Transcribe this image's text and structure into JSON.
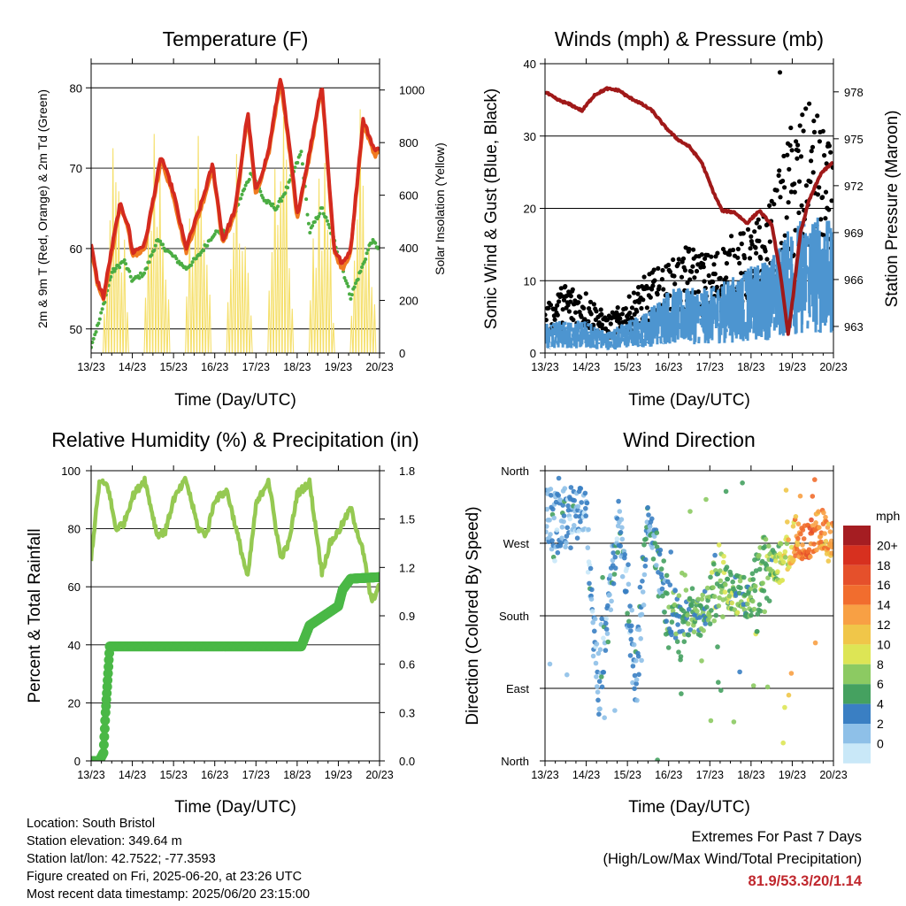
{
  "panels": {
    "temperature": {
      "title": "Temperature (F)",
      "ylabel_left": "2m & 9m T (Red, Orange) & 2m Td (Green)",
      "ylabel_right": "Solar Insolation (Yellow)",
      "xlabel": "Time (Day/UTC)",
      "x_ticks": [
        "13/23",
        "14/23",
        "15/23",
        "16/23",
        "17/23",
        "18/23",
        "19/23",
        "20/23"
      ],
      "y_ticks_left": [
        "50",
        "60",
        "70",
        "80"
      ],
      "y_ticks_right": [
        "0",
        "200",
        "400",
        "600",
        "800",
        "1000"
      ]
    },
    "winds": {
      "title": "Winds (mph) & Pressure (mb)",
      "ylabel_left": "Sonic Wind & Gust (Blue, Black)",
      "ylabel_right": "Station Pressure (Maroon)",
      "xlabel": "Time (Day/UTC)",
      "x_ticks": [
        "13/23",
        "14/23",
        "15/23",
        "16/23",
        "17/23",
        "18/23",
        "19/23",
        "20/23"
      ],
      "y_ticks_left": [
        "0",
        "10",
        "20",
        "30",
        "40"
      ],
      "y_ticks_right": [
        "963",
        "966",
        "969",
        "972",
        "975",
        "978"
      ]
    },
    "humidity": {
      "title": "Relative Humidity (%) & Precipitation (in)",
      "ylabel_left": "Percent & Total Rainfall",
      "xlabel": "Time (Day/UTC)",
      "x_ticks": [
        "13/23",
        "14/23",
        "15/23",
        "16/23",
        "17/23",
        "18/23",
        "19/23",
        "20/23"
      ],
      "y_ticks_left": [
        "0",
        "20",
        "40",
        "60",
        "80",
        "100"
      ],
      "y_ticks_right": [
        "0.0",
        "0.3",
        "0.6",
        "0.9",
        "1.2",
        "1.5",
        "1.8"
      ]
    },
    "direction": {
      "title": "Wind Direction",
      "ylabel_left": "Direction (Colored By Speed)",
      "xlabel": "Time (Day/UTC)",
      "x_ticks": [
        "13/23",
        "14/23",
        "15/23",
        "16/23",
        "17/23",
        "18/23",
        "19/23",
        "20/23"
      ],
      "y_ticks_left": [
        "North",
        "East",
        "South",
        "West",
        "North"
      ],
      "legend_title": "mph",
      "legend_labels": [
        "20+",
        "18",
        "16",
        "14",
        "12",
        "10",
        "8",
        "6",
        "4",
        "2",
        "0"
      ],
      "legend_colors": [
        "#a51d22",
        "#d7301f",
        "#e5502b",
        "#f16d2e",
        "#f8a044",
        "#f0c649",
        "#dde555",
        "#8cca62",
        "#45a160",
        "#3a7fc3",
        "#8ec0e8",
        "#c9e8f8"
      ]
    }
  },
  "info": {
    "location": "Location: South Bristol",
    "elevation": "Station elevation: 349.64 m",
    "latlon": "Station lat/lon: 42.7522; -77.3593",
    "created": "Figure created on Fri, 2025-06-20, at 23:26 UTC",
    "recent": "Most recent data timestamp: 2025/06/20 23:15:00"
  },
  "extremes": {
    "title": "Extremes For Past 7 Days",
    "subtitle": "(High/Low/Max Wind/Total Precipitation)",
    "values": "81.9/53.3/20/1.14"
  },
  "colors": {
    "temp_2m": "#d42a1f",
    "temp_9m": "#f07b20",
    "dewpoint": "#4bad43",
    "solar": "#f5df6a",
    "wind": "#4d95d0",
    "gust": "#000000",
    "pressure": "#a01919",
    "rh": "#95c952",
    "precip": "#4ab846"
  },
  "chart_data": [
    {
      "type": "line",
      "title": "Temperature (F)",
      "x": [
        "13/23",
        "14/23",
        "15/23",
        "16/23",
        "17/23",
        "18/23",
        "19/23",
        "20/23"
      ],
      "xlabel": "Time (Day/UTC)",
      "ylabel": "2m & 9m T (Red, Orange) & 2m Td (Green)",
      "ylim": [
        47,
        83
      ],
      "y2label": "Solar Insolation (Yellow)",
      "y2lim": [
        0,
        1100
      ],
      "series": [
        {
          "name": "2m T",
          "color": "#d42a1f",
          "x": [
            0,
            0.15,
            0.3,
            0.5,
            0.7,
            0.9,
            1.0,
            1.3,
            1.7,
            2.0,
            2.3,
            2.7,
            2.95,
            3.2,
            3.5,
            3.8,
            4.0,
            4.3,
            4.6,
            4.9,
            5.0,
            5.3,
            5.6,
            5.9,
            6.1,
            6.3,
            6.6,
            6.9,
            7.0
          ],
          "y": [
            60.5,
            56,
            54,
            60,
            65.5,
            63,
            59.5,
            60.5,
            71.5,
            67,
            60,
            66,
            70.5,
            61,
            65,
            77,
            67,
            72,
            81.5,
            69,
            64,
            72,
            80.5,
            60,
            58,
            60,
            76,
            72,
            73
          ]
        },
        {
          "name": "9m T",
          "color": "#f07b20",
          "x": [
            0,
            0.15,
            0.3,
            0.5,
            0.7,
            0.9,
            1.0,
            1.3,
            1.7,
            2.0,
            2.3,
            2.7,
            2.95,
            3.2,
            3.5,
            3.8,
            4.0,
            4.3,
            4.6,
            4.9,
            5.0,
            5.3,
            5.6,
            5.9,
            6.1,
            6.3,
            6.6,
            6.9,
            7.0
          ],
          "y": [
            60,
            55.5,
            53.5,
            59.5,
            65,
            62.5,
            59,
            60,
            71,
            66.5,
            59.5,
            65.5,
            70,
            60.5,
            64.5,
            76.5,
            66.5,
            71.5,
            81,
            68.5,
            63.5,
            71.5,
            80,
            59.5,
            57.5,
            59.5,
            75.5,
            71.5,
            72.5
          ]
        },
        {
          "name": "2m Td",
          "color": "#4bad43",
          "x": [
            0,
            0.2,
            0.5,
            0.8,
            1.0,
            1.3,
            1.6,
            2.0,
            2.3,
            2.6,
            3.0,
            3.3,
            3.6,
            3.9,
            4.2,
            4.5,
            4.8,
            5.1,
            5.3,
            5.6,
            5.9,
            6.1,
            6.3,
            6.6,
            6.8,
            7.0
          ],
          "y": [
            48,
            51,
            57,
            58.5,
            56,
            57,
            61,
            59,
            57.5,
            59,
            62,
            62,
            66,
            69.5,
            66,
            65,
            68,
            72,
            62,
            65,
            61,
            57.5,
            54,
            58,
            61,
            60
          ]
        },
        {
          "name": "Solar Insolation",
          "color": "#f5df6a",
          "axis": "right",
          "x": [
            0.6,
            1.6,
            2.6,
            3.6,
            4.6,
            5.6,
            6.6
          ],
          "peak": [
            820,
            1010,
            1000,
            900,
            1030,
            950,
            1010
          ]
        }
      ]
    },
    {
      "type": "line",
      "title": "Winds (mph) & Pressure (mb)",
      "x": [
        "13/23",
        "14/23",
        "15/23",
        "16/23",
        "17/23",
        "18/23",
        "19/23",
        "20/23"
      ],
      "xlabel": "Time (Day/UTC)",
      "ylabel": "Sonic Wind & Gust (Blue, Black)",
      "ylim": [
        0,
        40
      ],
      "y2label": "Station Pressure (Maroon)",
      "y2lim": [
        961.3,
        979.8
      ],
      "series": [
        {
          "name": "Station Pressure",
          "color": "#a01919",
          "axis": "right",
          "x": [
            0,
            0.3,
            0.6,
            0.9,
            1.2,
            1.5,
            1.8,
            2.0,
            2.3,
            2.6,
            2.9,
            3.2,
            3.5,
            3.8,
            4.1,
            4.3,
            4.6,
            4.9,
            5.2,
            5.5,
            5.7,
            5.9,
            6.0,
            6.2,
            6.4,
            6.7,
            7.0
          ],
          "y": [
            978.0,
            977.5,
            977.2,
            976.8,
            977.8,
            978.2,
            978.1,
            977.7,
            977.3,
            976.8,
            975.8,
            975.0,
            974.5,
            973.5,
            971.5,
            970.4,
            970.3,
            969.6,
            970.4,
            969.5,
            966.6,
            962.5,
            964.5,
            969.0,
            971.0,
            972.8,
            973.5
          ]
        },
        {
          "name": "Sonic Wind",
          "color": "#4d95d0",
          "x": [
            0,
            0.5,
            1.0,
            1.5,
            2.0,
            2.5,
            3.0,
            3.5,
            4.0,
            4.5,
            5.0,
            5.5,
            6.0,
            6.5,
            7.0
          ],
          "y": [
            3,
            3,
            3,
            2,
            3,
            4,
            6,
            6,
            6,
            7,
            8,
            9,
            12,
            13,
            12
          ]
        },
        {
          "name": "Gust",
          "color": "#000000",
          "x": [
            0,
            0.5,
            1.0,
            1.5,
            2.0,
            2.5,
            3.0,
            3.5,
            4.0,
            4.5,
            5.0,
            5.5,
            6.0,
            6.5,
            7.0
          ],
          "y": [
            5,
            8,
            7,
            4,
            6,
            9,
            10,
            12,
            11,
            13,
            14,
            17,
            26,
            28,
            22
          ]
        }
      ]
    },
    {
      "type": "line",
      "title": "Relative Humidity (%) & Precipitation (in)",
      "x": [
        "13/23",
        "14/23",
        "15/23",
        "16/23",
        "17/23",
        "18/23",
        "19/23",
        "20/23"
      ],
      "xlabel": "Time (Day/UTC)",
      "ylabel": "Percent & Total Rainfall",
      "ylim": [
        0,
        100
      ],
      "y2lim": [
        0,
        1.8
      ],
      "series": [
        {
          "name": "Relative Humidity",
          "color": "#95c952",
          "x": [
            0,
            0.2,
            0.4,
            0.6,
            0.8,
            1.0,
            1.3,
            1.6,
            1.8,
            2.0,
            2.3,
            2.6,
            2.8,
            3.0,
            3.3,
            3.6,
            3.8,
            4.0,
            4.3,
            4.6,
            4.8,
            5.0,
            5.3,
            5.6,
            5.8,
            6.0,
            6.3,
            6.6,
            6.8,
            7.0
          ],
          "y": [
            70,
            96,
            95,
            80,
            82,
            91,
            97,
            78,
            79,
            90,
            97,
            80,
            78,
            90,
            93,
            75,
            63,
            88,
            97,
            70,
            75,
            92,
            96,
            65,
            75,
            79,
            87,
            72,
            55,
            60
          ]
        },
        {
          "name": "Total Precipitation",
          "color": "#4ab846",
          "axis": "right",
          "x": [
            0,
            0.2,
            0.3,
            0.35,
            0.4,
            0.45,
            5.1,
            5.3,
            6.0,
            6.1,
            6.3,
            7.0
          ],
          "y": [
            0.0,
            0.0,
            0.05,
            0.3,
            0.5,
            0.71,
            0.71,
            0.84,
            0.96,
            1.06,
            1.13,
            1.14
          ]
        }
      ]
    },
    {
      "type": "scatter",
      "title": "Wind Direction",
      "x": [
        "13/23",
        "14/23",
        "15/23",
        "16/23",
        "17/23",
        "18/23",
        "19/23",
        "20/23"
      ],
      "xlabel": "Time (Day/UTC)",
      "ylabel": "Direction (Colored By Speed)",
      "y_categories": [
        "North",
        "East",
        "South",
        "West",
        "North"
      ],
      "colorbar_label": "mph",
      "colorbar_ticks": [
        "0",
        "2",
        "4",
        "6",
        "8",
        "10",
        "12",
        "14",
        "16",
        "18",
        "20+"
      ],
      "series": [
        {
          "name": "Wind Direction",
          "x": [
            0.3,
            1.0,
            1.3,
            1.8,
            2.2,
            2.5,
            3.0,
            3.4,
            3.8,
            4.2,
            4.5,
            5.0,
            5.3,
            5.6,
            5.8,
            6.1,
            6.4,
            6.7,
            6.9
          ],
          "y": [
            300,
            300,
            90,
            300,
            100,
            300,
            180,
            180,
            180,
            220,
            210,
            200,
            230,
            240,
            250,
            280,
            270,
            290,
            270
          ]
        }
      ]
    }
  ]
}
